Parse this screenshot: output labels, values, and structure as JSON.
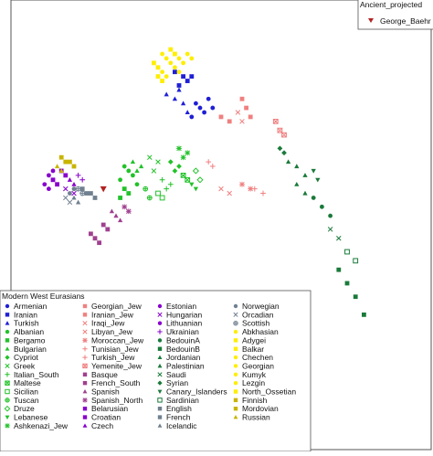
{
  "chart_data": {
    "type": "scatter",
    "title": "",
    "xlabel": "",
    "ylabel": "",
    "grid": false,
    "legend_placement": "bottom-left",
    "legend_title": "Modern West Eurasians",
    "ancient_legend": {
      "title": "Ancient_projected",
      "entries": [
        {
          "name": "George_Baehr",
          "color": "#b22222",
          "marker": "triangle-down"
        }
      ]
    },
    "series": [
      {
        "name": "Armenian",
        "color": "#1f1fd6",
        "marker": "circle",
        "points": [
          [
            0.44,
            0.23
          ],
          [
            0.45,
            0.24
          ],
          [
            0.46,
            0.25
          ],
          [
            0.43,
            0.26
          ],
          [
            0.47,
            0.22
          ],
          [
            0.48,
            0.24
          ]
        ]
      },
      {
        "name": "Iranian",
        "color": "#1f1fd6",
        "marker": "square",
        "points": [
          [
            0.39,
            0.16
          ],
          [
            0.41,
            0.17
          ],
          [
            0.42,
            0.18
          ],
          [
            0.4,
            0.19
          ],
          [
            0.43,
            0.17
          ]
        ]
      },
      {
        "name": "Turkish",
        "color": "#1f1fd6",
        "marker": "triangle-up",
        "points": [
          [
            0.37,
            0.21
          ],
          [
            0.39,
            0.22
          ],
          [
            0.41,
            0.23
          ],
          [
            0.42,
            0.25
          ],
          [
            0.4,
            0.2
          ]
        ]
      },
      {
        "name": "Albanian",
        "color": "#22c22a",
        "marker": "circle",
        "points": [
          [
            0.27,
            0.37
          ],
          [
            0.28,
            0.38
          ],
          [
            0.26,
            0.4
          ],
          [
            0.29,
            0.39
          ],
          [
            0.3,
            0.41
          ]
        ]
      },
      {
        "name": "Bergamo",
        "color": "#22c22a",
        "marker": "square",
        "points": [
          [
            0.27,
            0.42
          ],
          [
            0.28,
            0.43
          ],
          [
            0.26,
            0.44
          ]
        ]
      },
      {
        "name": "Bulgarian",
        "color": "#22c22a",
        "marker": "triangle-up",
        "points": [
          [
            0.29,
            0.36
          ],
          [
            0.31,
            0.37
          ],
          [
            0.3,
            0.38
          ]
        ]
      },
      {
        "name": "Cypriot",
        "color": "#22c22a",
        "marker": "diamond",
        "points": [
          [
            0.38,
            0.36
          ],
          [
            0.4,
            0.37
          ],
          [
            0.39,
            0.38
          ]
        ]
      },
      {
        "name": "Greek",
        "color": "#22c22a",
        "marker": "x",
        "points": [
          [
            0.33,
            0.35
          ],
          [
            0.35,
            0.36
          ],
          [
            0.34,
            0.38
          ]
        ]
      },
      {
        "name": "Italian_South",
        "color": "#22c22a",
        "marker": "plus",
        "points": [
          [
            0.36,
            0.4
          ],
          [
            0.38,
            0.41
          ],
          [
            0.37,
            0.42
          ]
        ]
      },
      {
        "name": "Maltese",
        "color": "#22c22a",
        "marker": "square-x",
        "points": [
          [
            0.41,
            0.39
          ],
          [
            0.42,
            0.4
          ]
        ]
      },
      {
        "name": "Sicilian",
        "color": "#22c22a",
        "marker": "square-open",
        "points": [
          [
            0.35,
            0.43
          ],
          [
            0.36,
            0.44
          ]
        ]
      },
      {
        "name": "Tuscan",
        "color": "#22c22a",
        "marker": "circle-plus",
        "points": [
          [
            0.32,
            0.42
          ],
          [
            0.33,
            0.44
          ]
        ]
      },
      {
        "name": "Druze",
        "color": "#22c22a",
        "marker": "diamond-open",
        "points": [
          [
            0.44,
            0.38
          ],
          [
            0.45,
            0.4
          ]
        ]
      },
      {
        "name": "Lebanese",
        "color": "#22c22a",
        "marker": "triangle-down",
        "points": [
          [
            0.43,
            0.41
          ],
          [
            0.44,
            0.42
          ]
        ]
      },
      {
        "name": "Ashkenazi_Jew",
        "color": "#22c22a",
        "marker": "asterisk",
        "points": [
          [
            0.4,
            0.33
          ],
          [
            0.42,
            0.34
          ],
          [
            0.41,
            0.35
          ]
        ]
      },
      {
        "name": "Georgian_Jew",
        "color": "#f08080",
        "marker": "square",
        "points": [
          [
            0.5,
            0.26
          ],
          [
            0.52,
            0.27
          ]
        ]
      },
      {
        "name": "Iranian_Jew",
        "color": "#f08080",
        "marker": "square",
        "points": [
          [
            0.55,
            0.22
          ],
          [
            0.56,
            0.24
          ],
          [
            0.57,
            0.26
          ]
        ]
      },
      {
        "name": "Iraqi_Jew",
        "color": "#f08080",
        "marker": "x",
        "points": [
          [
            0.54,
            0.25
          ],
          [
            0.55,
            0.27
          ]
        ]
      },
      {
        "name": "Libyan_Jew",
        "color": "#f08080",
        "marker": "x",
        "points": [
          [
            0.5,
            0.42
          ],
          [
            0.52,
            0.43
          ]
        ]
      },
      {
        "name": "Moroccan_Jew",
        "color": "#f08080",
        "marker": "asterisk",
        "points": [
          [
            0.55,
            0.41
          ],
          [
            0.57,
            0.42
          ]
        ]
      },
      {
        "name": "Tunisian_Jew",
        "color": "#f08080",
        "marker": "plus",
        "points": [
          [
            0.58,
            0.42
          ],
          [
            0.6,
            0.43
          ]
        ]
      },
      {
        "name": "Turkish_Jew",
        "color": "#f08080",
        "marker": "plus",
        "points": [
          [
            0.47,
            0.36
          ],
          [
            0.48,
            0.37
          ]
        ]
      },
      {
        "name": "Yemenite_Jew",
        "color": "#f08080",
        "marker": "square-x",
        "points": [
          [
            0.63,
            0.27
          ],
          [
            0.64,
            0.29
          ],
          [
            0.65,
            0.3
          ]
        ]
      },
      {
        "name": "Basque",
        "color": "#a0408f",
        "marker": "square",
        "points": [
          [
            0.19,
            0.52
          ],
          [
            0.2,
            0.53
          ],
          [
            0.21,
            0.54
          ]
        ]
      },
      {
        "name": "French_South",
        "color": "#a0408f",
        "marker": "square",
        "points": [
          [
            0.22,
            0.5
          ],
          [
            0.23,
            0.51
          ]
        ]
      },
      {
        "name": "Spanish",
        "color": "#a0408f",
        "marker": "triangle-up",
        "points": [
          [
            0.24,
            0.47
          ],
          [
            0.25,
            0.48
          ],
          [
            0.26,
            0.49
          ]
        ]
      },
      {
        "name": "Spanish_North",
        "color": "#a0408f",
        "marker": "asterisk",
        "points": [
          [
            0.27,
            0.46
          ],
          [
            0.28,
            0.47
          ]
        ]
      },
      {
        "name": "Belarusian",
        "color": "#8800cc",
        "marker": "square",
        "points": [
          [
            0.1,
            0.4
          ],
          [
            0.11,
            0.41
          ]
        ]
      },
      {
        "name": "Croatian",
        "color": "#8800cc",
        "marker": "square",
        "points": [
          [
            0.12,
            0.38
          ],
          [
            0.13,
            0.39
          ]
        ]
      },
      {
        "name": "Czech",
        "color": "#8800cc",
        "marker": "triangle-up",
        "points": [
          [
            0.14,
            0.4
          ],
          [
            0.15,
            0.41
          ]
        ]
      },
      {
        "name": "Estonian",
        "color": "#8800cc",
        "marker": "circle",
        "points": [
          [
            0.09,
            0.39
          ],
          [
            0.1,
            0.38
          ]
        ]
      },
      {
        "name": "Hungarian",
        "color": "#8800cc",
        "marker": "x",
        "points": [
          [
            0.13,
            0.42
          ],
          [
            0.15,
            0.43
          ]
        ]
      },
      {
        "name": "Lithuanian",
        "color": "#8800cc",
        "marker": "circle",
        "points": [
          [
            0.08,
            0.41
          ],
          [
            0.09,
            0.42
          ]
        ]
      },
      {
        "name": "Ukrainian",
        "color": "#8800cc",
        "marker": "plus",
        "points": [
          [
            0.16,
            0.39
          ],
          [
            0.17,
            0.4
          ]
        ]
      },
      {
        "name": "BedouinA",
        "color": "#1a7a3a",
        "marker": "circle",
        "points": [
          [
            0.72,
            0.44
          ],
          [
            0.74,
            0.46
          ],
          [
            0.76,
            0.48
          ]
        ]
      },
      {
        "name": "BedouinB",
        "color": "#1a7a3a",
        "marker": "square",
        "points": [
          [
            0.78,
            0.6
          ],
          [
            0.8,
            0.63
          ],
          [
            0.82,
            0.66
          ],
          [
            0.84,
            0.7
          ]
        ]
      },
      {
        "name": "Jordanian",
        "color": "#1a7a3a",
        "marker": "triangle-up",
        "points": [
          [
            0.66,
            0.36
          ],
          [
            0.68,
            0.37
          ],
          [
            0.7,
            0.39
          ]
        ]
      },
      {
        "name": "Palestinian",
        "color": "#1a7a3a",
        "marker": "triangle-up",
        "points": [
          [
            0.68,
            0.41
          ],
          [
            0.7,
            0.43
          ]
        ]
      },
      {
        "name": "Saudi",
        "color": "#1a7a3a",
        "marker": "x",
        "points": [
          [
            0.76,
            0.51
          ],
          [
            0.78,
            0.53
          ]
        ]
      },
      {
        "name": "Syrian",
        "color": "#1a7a3a",
        "marker": "diamond",
        "points": [
          [
            0.64,
            0.33
          ],
          [
            0.65,
            0.34
          ]
        ]
      },
      {
        "name": "Canary_Islanders",
        "color": "#1a7a3a",
        "marker": "triangle-down",
        "points": [
          [
            0.72,
            0.38
          ],
          [
            0.73,
            0.4
          ]
        ]
      },
      {
        "name": "Sardinian",
        "color": "#1a7a3a",
        "marker": "square-open",
        "points": [
          [
            0.8,
            0.56
          ],
          [
            0.82,
            0.58
          ]
        ]
      },
      {
        "name": "English",
        "color": "#708090",
        "marker": "square",
        "points": [
          [
            0.17,
            0.42
          ],
          [
            0.18,
            0.43
          ]
        ]
      },
      {
        "name": "French",
        "color": "#708090",
        "marker": "square",
        "points": [
          [
            0.19,
            0.43
          ],
          [
            0.2,
            0.44
          ]
        ]
      },
      {
        "name": "Icelandic",
        "color": "#708090",
        "marker": "triangle-up",
        "points": [
          [
            0.15,
            0.44
          ],
          [
            0.16,
            0.45
          ]
        ]
      },
      {
        "name": "Norwegian",
        "color": "#708090",
        "marker": "circle",
        "points": [
          [
            0.14,
            0.43
          ],
          [
            0.15,
            0.42
          ]
        ]
      },
      {
        "name": "Orcadian",
        "color": "#708090",
        "marker": "x",
        "points": [
          [
            0.13,
            0.44
          ],
          [
            0.14,
            0.45
          ]
        ]
      },
      {
        "name": "Scottish",
        "color": "#708090",
        "marker": "circle-plus",
        "points": [
          [
            0.16,
            0.42
          ],
          [
            0.17,
            0.43
          ]
        ]
      },
      {
        "name": "Abkhasian",
        "color": "#ffee00",
        "marker": "circle",
        "points": [
          [
            0.36,
            0.12
          ],
          [
            0.37,
            0.13
          ],
          [
            0.38,
            0.14
          ]
        ]
      },
      {
        "name": "Adygei",
        "color": "#ffee00",
        "marker": "square",
        "points": [
          [
            0.34,
            0.14
          ],
          [
            0.35,
            0.15
          ]
        ]
      },
      {
        "name": "Balkar",
        "color": "#ffee00",
        "marker": "square",
        "points": [
          [
            0.38,
            0.11
          ],
          [
            0.39,
            0.12
          ]
        ]
      },
      {
        "name": "Chechen",
        "color": "#ffee00",
        "marker": "circle",
        "points": [
          [
            0.4,
            0.13
          ],
          [
            0.41,
            0.14
          ]
        ]
      },
      {
        "name": "Georgian",
        "color": "#ffee00",
        "marker": "circle",
        "points": [
          [
            0.36,
            0.16
          ],
          [
            0.37,
            0.17
          ]
        ]
      },
      {
        "name": "Kumyk",
        "color": "#ffee00",
        "marker": "circle",
        "points": [
          [
            0.39,
            0.15
          ],
          [
            0.4,
            0.16
          ]
        ]
      },
      {
        "name": "Lezgin",
        "color": "#ffee00",
        "marker": "circle",
        "points": [
          [
            0.42,
            0.12
          ],
          [
            0.43,
            0.13
          ]
        ]
      },
      {
        "name": "North_Ossetian",
        "color": "#ffee00",
        "marker": "square",
        "points": [
          [
            0.35,
            0.17
          ],
          [
            0.36,
            0.18
          ]
        ]
      },
      {
        "name": "Finnish",
        "color": "#c8b400",
        "marker": "square",
        "points": [
          [
            0.12,
            0.35
          ],
          [
            0.13,
            0.36
          ]
        ]
      },
      {
        "name": "Mordovian",
        "color": "#c8b400",
        "marker": "square",
        "points": [
          [
            0.14,
            0.36
          ],
          [
            0.15,
            0.37
          ]
        ]
      },
      {
        "name": "Russian",
        "color": "#c8b400",
        "marker": "triangle-up",
        "points": [
          [
            0.11,
            0.37
          ],
          [
            0.12,
            0.38
          ]
        ]
      }
    ],
    "ancient_points": [
      {
        "name": "George_Baehr",
        "points": [
          [
            0.22,
            0.42
          ]
        ]
      }
    ]
  }
}
